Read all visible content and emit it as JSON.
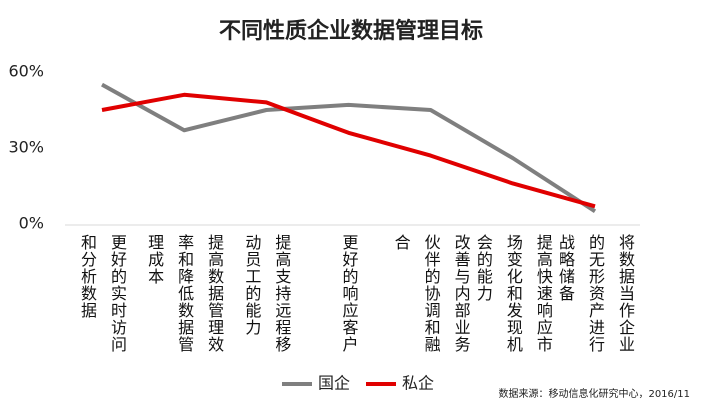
{
  "chart_data": {
    "type": "line",
    "title": "不同性质企业数据管理目标",
    "categories": [
      "更好的实时访问和分析数据",
      "提高数据管理效率和降低数据管理成本",
      "提高支持远程移动员工的能力",
      "更好的响应客户",
      "改善与内部业务伙伴的协调和融合",
      "提高快速响应市场变化和发现机会的能力",
      "将数据当作企业的无形资产进行战略储备"
    ],
    "series": [
      {
        "name": "国企",
        "color": "#7f7f7f",
        "values": [
          55,
          37,
          45,
          47,
          45,
          26,
          5
        ]
      },
      {
        "name": "私企",
        "color": "#e00000",
        "values": [
          45,
          51,
          48,
          36,
          27,
          16,
          7
        ]
      }
    ],
    "ylim": [
      0,
      60
    ],
    "yticks": [
      {
        "value": 0,
        "label": "0%"
      },
      {
        "value": 30,
        "label": "30%"
      },
      {
        "value": 60,
        "label": "60%"
      }
    ],
    "legend": "bottom",
    "source": "数据来源：移动信息化研究中心，2016/11"
  }
}
